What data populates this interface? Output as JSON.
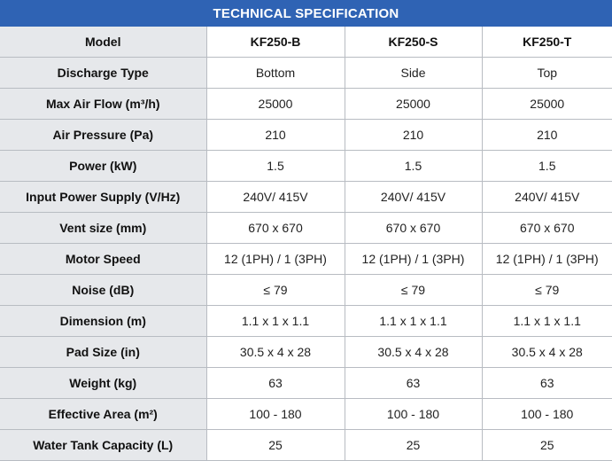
{
  "title": "TECHNICAL SPECIFICATION",
  "rows": [
    {
      "label": "Model",
      "values": [
        "KF250-B",
        "KF250-S",
        "KF250-T"
      ]
    },
    {
      "label": "Discharge Type",
      "values": [
        "Bottom",
        "Side",
        "Top"
      ]
    },
    {
      "label": "Max Air Flow (m³/h)",
      "values": [
        "25000",
        "25000",
        "25000"
      ]
    },
    {
      "label": "Air Pressure (Pa)",
      "values": [
        "210",
        "210",
        "210"
      ]
    },
    {
      "label": "Power (kW)",
      "values": [
        "1.5",
        "1.5",
        "1.5"
      ]
    },
    {
      "label": "Input Power Supply (V/Hz)",
      "values": [
        "240V/ 415V",
        "240V/ 415V",
        "240V/ 415V"
      ]
    },
    {
      "label": "Vent size (mm)",
      "values": [
        "670 x 670",
        "670 x 670",
        "670 x 670"
      ]
    },
    {
      "label": "Motor Speed",
      "values": [
        "12 (1PH) / 1 (3PH)",
        "12 (1PH) / 1 (3PH)",
        "12 (1PH) / 1 (3PH)"
      ]
    },
    {
      "label": "Noise (dB)",
      "values": [
        "≤ 79",
        "≤ 79",
        "≤ 79"
      ]
    },
    {
      "label": "Dimension (m)",
      "values": [
        "1.1 x 1 x 1.1",
        "1.1 x 1 x 1.1",
        "1.1 x 1 x 1.1"
      ]
    },
    {
      "label": "Pad Size (in)",
      "values": [
        "30.5 x 4 x 28",
        "30.5 x 4 x 28",
        "30.5 x 4 x 28"
      ]
    },
    {
      "label": "Weight (kg)",
      "values": [
        "63",
        "63",
        "63"
      ]
    },
    {
      "label": "Effective Area (m²)",
      "values": [
        "100 - 180",
        "100 - 180",
        "100 - 180"
      ]
    },
    {
      "label": "Water Tank Capacity (L)",
      "values": [
        "25",
        "25",
        "25"
      ]
    }
  ]
}
